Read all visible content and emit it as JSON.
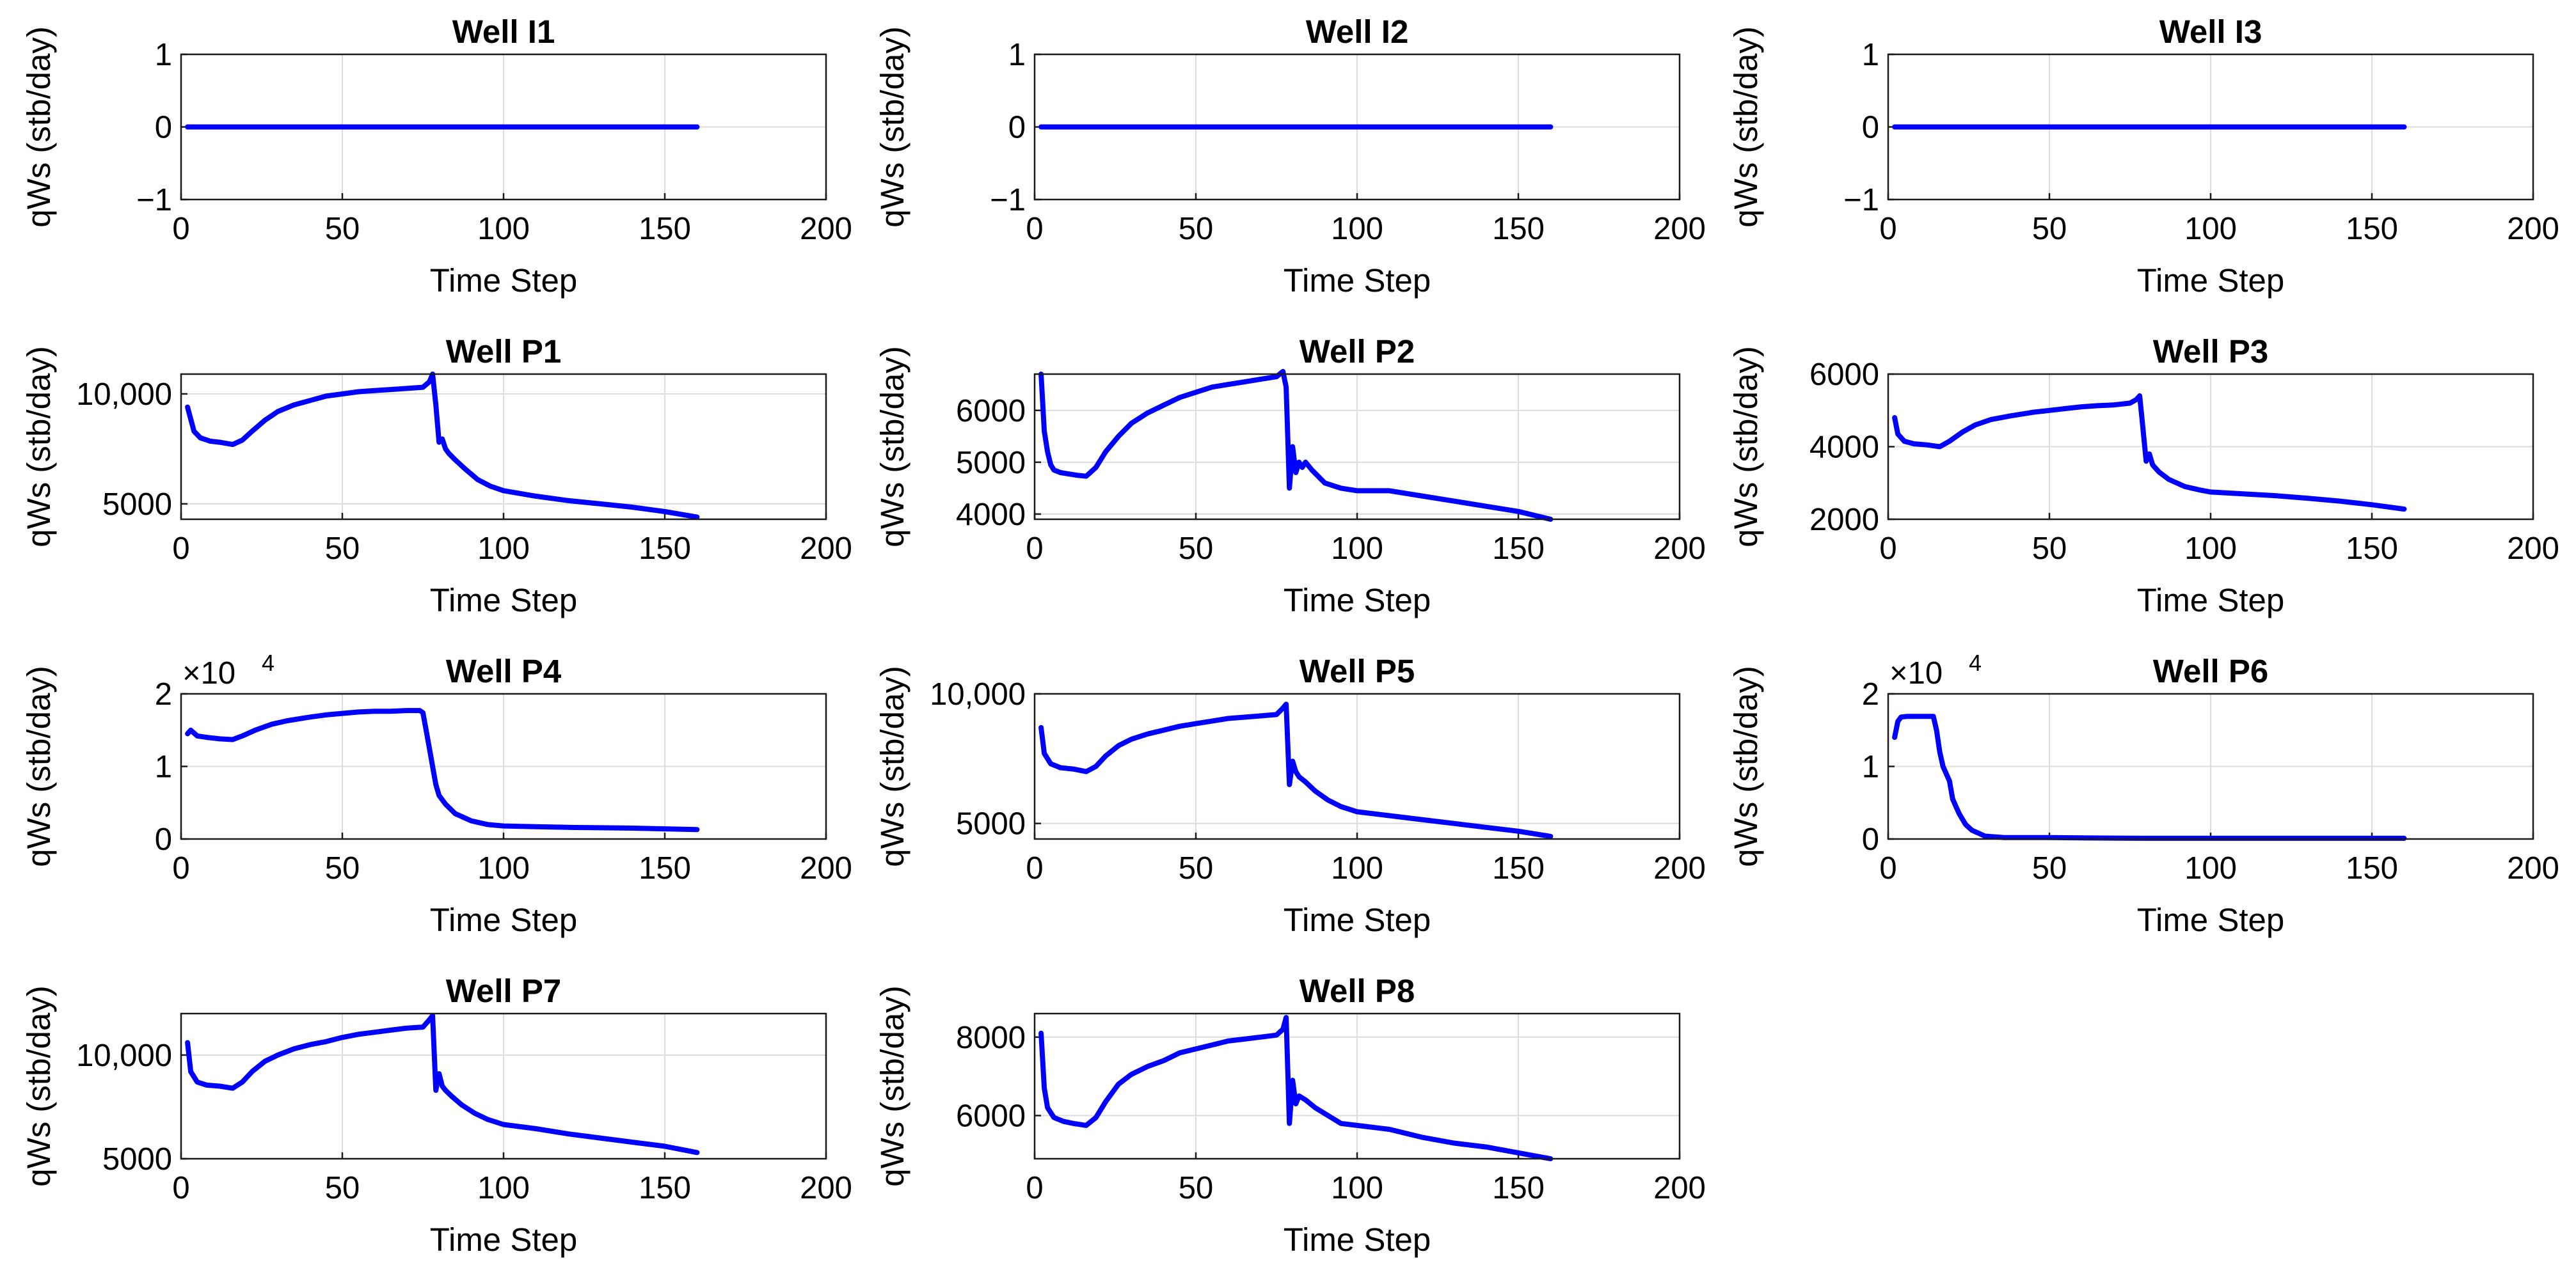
{
  "figure": {
    "series_color": "#0000ff"
  },
  "chart_data": [
    {
      "type": "line",
      "title": "Well I1",
      "xlabel": "Time Step",
      "ylabel": "qWs (stb/day)",
      "xlim": [
        0,
        200
      ],
      "ylim": [
        -1,
        1
      ],
      "xticks": [
        0,
        50,
        100,
        150,
        200
      ],
      "xtick_labels": [
        "0",
        "50",
        "100",
        "150",
        "200"
      ],
      "yticks": [
        -1,
        0,
        1
      ],
      "ytick_labels": [
        "−1",
        "0",
        "1"
      ],
      "exponent": "",
      "series": [
        {
          "name": "qWs",
          "x": [
            2,
            160
          ],
          "y": [
            0,
            0
          ]
        }
      ]
    },
    {
      "type": "line",
      "title": "Well I2",
      "xlabel": "Time Step",
      "ylabel": "qWs (stb/day)",
      "xlim": [
        0,
        200
      ],
      "ylim": [
        -1,
        1
      ],
      "xticks": [
        0,
        50,
        100,
        150,
        200
      ],
      "xtick_labels": [
        "0",
        "50",
        "100",
        "150",
        "200"
      ],
      "yticks": [
        -1,
        0,
        1
      ],
      "ytick_labels": [
        "−1",
        "0",
        "1"
      ],
      "exponent": "",
      "series": [
        {
          "name": "qWs",
          "x": [
            2,
            160
          ],
          "y": [
            0,
            0
          ]
        }
      ]
    },
    {
      "type": "line",
      "title": "Well I3",
      "xlabel": "Time Step",
      "ylabel": "qWs (stb/day)",
      "xlim": [
        0,
        200
      ],
      "ylim": [
        -1,
        1
      ],
      "xticks": [
        0,
        50,
        100,
        150,
        200
      ],
      "xtick_labels": [
        "0",
        "50",
        "100",
        "150",
        "200"
      ],
      "yticks": [
        -1,
        0,
        1
      ],
      "ytick_labels": [
        "−1",
        "0",
        "1"
      ],
      "exponent": "",
      "series": [
        {
          "name": "qWs",
          "x": [
            2,
            160
          ],
          "y": [
            0,
            0
          ]
        }
      ]
    },
    {
      "type": "line",
      "title": "Well P1",
      "xlabel": "Time Step",
      "ylabel": "qWs (stb/day)",
      "xlim": [
        0,
        200
      ],
      "ylim": [
        4300,
        10900
      ],
      "xticks": [
        0,
        50,
        100,
        150,
        200
      ],
      "xtick_labels": [
        "0",
        "50",
        "100",
        "150",
        "200"
      ],
      "yticks": [
        5000,
        10000
      ],
      "ytick_labels": [
        "5000",
        "10,000"
      ],
      "exponent": "",
      "series": [
        {
          "name": "qWs",
          "x": [
            2,
            4,
            6,
            9,
            12,
            16,
            19,
            22,
            26,
            30,
            35,
            40,
            45,
            50,
            55,
            60,
            65,
            70,
            75,
            77,
            78,
            79,
            80,
            81,
            82,
            83,
            85,
            88,
            92,
            96,
            100,
            110,
            120,
            130,
            140,
            150,
            160
          ],
          "y": [
            9400,
            8300,
            8000,
            7850,
            7800,
            7700,
            7900,
            8300,
            8800,
            9200,
            9500,
            9700,
            9900,
            10000,
            10100,
            10150,
            10200,
            10250,
            10300,
            10550,
            10900,
            9500,
            7800,
            7950,
            7500,
            7300,
            7000,
            6600,
            6100,
            5800,
            5600,
            5350,
            5150,
            5000,
            4850,
            4650,
            4400
          ]
        }
      ]
    },
    {
      "type": "line",
      "title": "Well P2",
      "xlabel": "Time Step",
      "ylabel": "qWs (stb/day)",
      "xlim": [
        0,
        200
      ],
      "ylim": [
        3900,
        6700
      ],
      "xticks": [
        0,
        50,
        100,
        150,
        200
      ],
      "xtick_labels": [
        "0",
        "50",
        "100",
        "150",
        "200"
      ],
      "yticks": [
        4000,
        5000,
        6000
      ],
      "ytick_labels": [
        "4000",
        "5000",
        "6000"
      ],
      "exponent": "",
      "series": [
        {
          "name": "qWs",
          "x": [
            2,
            3,
            4,
            5,
            6,
            8,
            10,
            13,
            16,
            19,
            22,
            26,
            30,
            35,
            40,
            45,
            50,
            55,
            60,
            65,
            70,
            75,
            77,
            78,
            79,
            80,
            81,
            82,
            83,
            84,
            86,
            90,
            95,
            100,
            110,
            120,
            130,
            140,
            150,
            160
          ],
          "y": [
            6700,
            5600,
            5200,
            4950,
            4850,
            4800,
            4780,
            4750,
            4730,
            4900,
            5200,
            5500,
            5750,
            5950,
            6100,
            6250,
            6350,
            6450,
            6500,
            6550,
            6600,
            6650,
            6750,
            6450,
            4500,
            5300,
            4800,
            5000,
            4900,
            5000,
            4850,
            4600,
            4500,
            4450,
            4450,
            4350,
            4250,
            4150,
            4050,
            3900
          ]
        }
      ]
    },
    {
      "type": "line",
      "title": "Well P3",
      "xlabel": "Time Step",
      "ylabel": "qWs (stb/day)",
      "xlim": [
        0,
        200
      ],
      "ylim": [
        2000,
        6000
      ],
      "xticks": [
        0,
        50,
        100,
        150,
        200
      ],
      "xtick_labels": [
        "0",
        "50",
        "100",
        "150",
        "200"
      ],
      "yticks": [
        2000,
        4000,
        6000
      ],
      "ytick_labels": [
        "2000",
        "4000",
        "6000"
      ],
      "exponent": "",
      "series": [
        {
          "name": "qWs",
          "x": [
            2,
            3,
            5,
            8,
            12,
            16,
            19,
            23,
            27,
            32,
            38,
            45,
            50,
            55,
            60,
            65,
            70,
            75,
            77,
            78,
            79,
            80,
            81,
            82,
            84,
            87,
            92,
            97,
            100,
            110,
            120,
            130,
            140,
            150,
            160
          ],
          "y": [
            4800,
            4350,
            4150,
            4080,
            4050,
            4000,
            4150,
            4400,
            4600,
            4750,
            4850,
            4950,
            5000,
            5050,
            5100,
            5130,
            5150,
            5200,
            5300,
            5400,
            4500,
            3600,
            3800,
            3500,
            3300,
            3100,
            2900,
            2800,
            2750,
            2700,
            2650,
            2580,
            2500,
            2400,
            2280
          ]
        }
      ]
    },
    {
      "type": "line",
      "title": "Well P4",
      "xlabel": "Time Step",
      "ylabel": "qWs (stb/day)",
      "xlim": [
        0,
        200
      ],
      "ylim": [
        0,
        2
      ],
      "xticks": [
        0,
        50,
        100,
        150,
        200
      ],
      "xtick_labels": [
        "0",
        "50",
        "100",
        "150",
        "200"
      ],
      "yticks": [
        0,
        1,
        2
      ],
      "ytick_labels": [
        "0",
        "1",
        "2"
      ],
      "exponent": "×10",
      "exponent_power": "4",
      "series": [
        {
          "name": "qWs (×10^4)",
          "x": [
            2,
            3,
            5,
            8,
            12,
            16,
            19,
            23,
            28,
            33,
            40,
            45,
            50,
            55,
            60,
            65,
            70,
            74,
            75,
            76,
            77,
            78,
            79,
            80,
            82,
            85,
            90,
            95,
            100,
            110,
            120,
            130,
            140,
            150,
            160
          ],
          "y": [
            1.45,
            1.5,
            1.42,
            1.4,
            1.38,
            1.37,
            1.42,
            1.5,
            1.58,
            1.63,
            1.68,
            1.71,
            1.73,
            1.75,
            1.76,
            1.76,
            1.77,
            1.77,
            1.74,
            1.5,
            1.25,
            1.0,
            0.75,
            0.6,
            0.48,
            0.35,
            0.25,
            0.2,
            0.18,
            0.17,
            0.16,
            0.155,
            0.15,
            0.14,
            0.13
          ]
        }
      ]
    },
    {
      "type": "line",
      "title": "Well P5",
      "xlabel": "Time Step",
      "ylabel": "qWs (stb/day)",
      "xlim": [
        0,
        200
      ],
      "ylim": [
        4400,
        10000
      ],
      "xticks": [
        0,
        50,
        100,
        150,
        200
      ],
      "xtick_labels": [
        "0",
        "50",
        "100",
        "150",
        "200"
      ],
      "yticks": [
        5000,
        10000
      ],
      "ytick_labels": [
        "5000",
        "10,000"
      ],
      "exponent": "",
      "series": [
        {
          "name": "qWs",
          "x": [
            2,
            3,
            5,
            8,
            12,
            16,
            19,
            22,
            26,
            30,
            35,
            40,
            45,
            50,
            55,
            60,
            65,
            70,
            75,
            77,
            78,
            79,
            80,
            81,
            82,
            84,
            87,
            91,
            95,
            100,
            110,
            120,
            130,
            140,
            150,
            160
          ],
          "y": [
            8700,
            7700,
            7300,
            7150,
            7100,
            7000,
            7200,
            7600,
            8000,
            8250,
            8450,
            8600,
            8750,
            8850,
            8950,
            9050,
            9100,
            9150,
            9200,
            9450,
            9600,
            6500,
            7400,
            7000,
            6800,
            6600,
            6250,
            5900,
            5650,
            5450,
            5300,
            5150,
            5000,
            4850,
            4700,
            4500
          ]
        }
      ]
    },
    {
      "type": "line",
      "title": "Well P6",
      "xlabel": "Time Step",
      "ylabel": "qWs (stb/day)",
      "xlim": [
        0,
        200
      ],
      "ylim": [
        0,
        2
      ],
      "xticks": [
        0,
        50,
        100,
        150,
        200
      ],
      "xtick_labels": [
        "0",
        "50",
        "100",
        "150",
        "200"
      ],
      "yticks": [
        0,
        1,
        2
      ],
      "ytick_labels": [
        "0",
        "1",
        "2"
      ],
      "exponent": "×10",
      "exponent_power": "4",
      "series": [
        {
          "name": "qWs (×10^4)",
          "x": [
            2,
            3,
            4,
            6,
            10,
            14,
            15,
            16,
            17,
            18,
            19,
            20,
            21,
            22,
            24,
            26,
            28,
            30,
            33,
            36,
            40,
            50,
            60,
            80,
            100,
            120,
            140,
            160
          ],
          "y": [
            1.4,
            1.62,
            1.68,
            1.69,
            1.69,
            1.69,
            1.5,
            1.2,
            1.0,
            0.9,
            0.8,
            0.55,
            0.45,
            0.35,
            0.2,
            0.12,
            0.08,
            0.04,
            0.03,
            0.02,
            0.02,
            0.02,
            0.015,
            0.01,
            0.01,
            0.01,
            0.01,
            0.01
          ]
        }
      ]
    },
    {
      "type": "line",
      "title": "Well P7",
      "xlabel": "Time Step",
      "ylabel": "qWs (stb/day)",
      "xlim": [
        0,
        200
      ],
      "ylim": [
        5000,
        12000
      ],
      "xticks": [
        0,
        50,
        100,
        150,
        200
      ],
      "xtick_labels": [
        "0",
        "50",
        "100",
        "150",
        "200"
      ],
      "yticks": [
        5000,
        10000
      ],
      "ytick_labels": [
        "5000",
        "10,000"
      ],
      "exponent": "",
      "series": [
        {
          "name": "qWs",
          "x": [
            2,
            3,
            5,
            8,
            12,
            16,
            19,
            22,
            26,
            30,
            35,
            40,
            45,
            50,
            55,
            60,
            65,
            70,
            75,
            77,
            78,
            79,
            80,
            81,
            82,
            84,
            87,
            91,
            95,
            100,
            110,
            120,
            130,
            140,
            150,
            160
          ],
          "y": [
            10600,
            9200,
            8700,
            8550,
            8500,
            8400,
            8700,
            9200,
            9700,
            10000,
            10300,
            10500,
            10650,
            10850,
            11000,
            11100,
            11200,
            11300,
            11350,
            11700,
            11900,
            8300,
            9100,
            8500,
            8300,
            8000,
            7600,
            7200,
            6900,
            6650,
            6450,
            6200,
            6000,
            5800,
            5600,
            5300
          ]
        }
      ]
    },
    {
      "type": "line",
      "title": "Well P8",
      "xlabel": "Time Step",
      "ylabel": "qWs (stb/day)",
      "xlim": [
        0,
        200
      ],
      "ylim": [
        4900,
        8600
      ],
      "xticks": [
        0,
        50,
        100,
        150,
        200
      ],
      "xtick_labels": [
        "0",
        "50",
        "100",
        "150",
        "200"
      ],
      "yticks": [
        6000,
        8000
      ],
      "ytick_labels": [
        "6000",
        "8000"
      ],
      "exponent": "",
      "series": [
        {
          "name": "qWs",
          "x": [
            2,
            3,
            4,
            6,
            9,
            12,
            16,
            19,
            22,
            26,
            30,
            35,
            40,
            45,
            50,
            55,
            60,
            65,
            70,
            75,
            77,
            78,
            79,
            80,
            81,
            82,
            84,
            87,
            91,
            95,
            100,
            110,
            120,
            130,
            140,
            150,
            160
          ],
          "y": [
            8100,
            6700,
            6200,
            5950,
            5850,
            5800,
            5750,
            5950,
            6350,
            6800,
            7050,
            7250,
            7400,
            7600,
            7700,
            7800,
            7900,
            7950,
            8000,
            8050,
            8200,
            8500,
            5800,
            6900,
            6300,
            6500,
            6400,
            6200,
            6000,
            5800,
            5750,
            5650,
            5450,
            5300,
            5200,
            5050,
            4900
          ]
        }
      ]
    }
  ]
}
